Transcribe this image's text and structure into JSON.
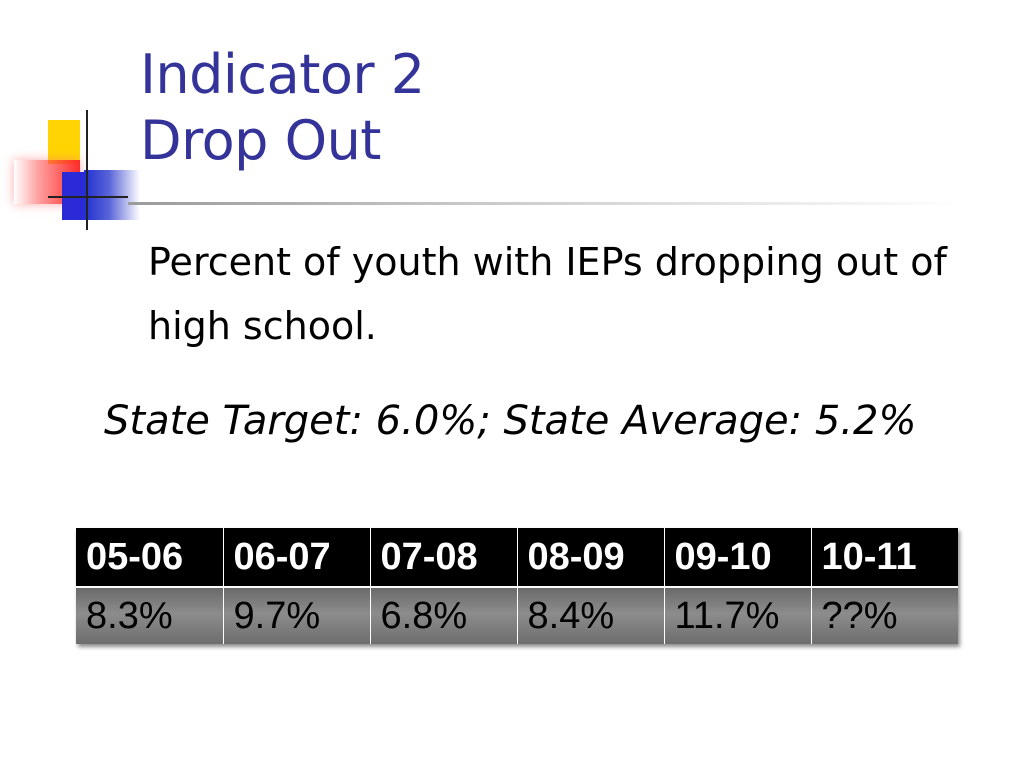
{
  "slide": {
    "title_line1": "Indicator 2",
    "title_line2": "Drop Out",
    "subtitle": "Percent of youth with IEPs dropping out of high school.",
    "target_text": "State Target: 6.0%; State Average: 5.2%",
    "title_color": "#333399"
  },
  "table": {
    "headers": [
      "05-06",
      "06-07",
      "07-08",
      "08-09",
      "09-10",
      "10-11"
    ],
    "values": [
      "8.3%",
      "9.7%",
      "6.8%",
      "8.4%",
      "11.7%",
      "??%"
    ]
  }
}
